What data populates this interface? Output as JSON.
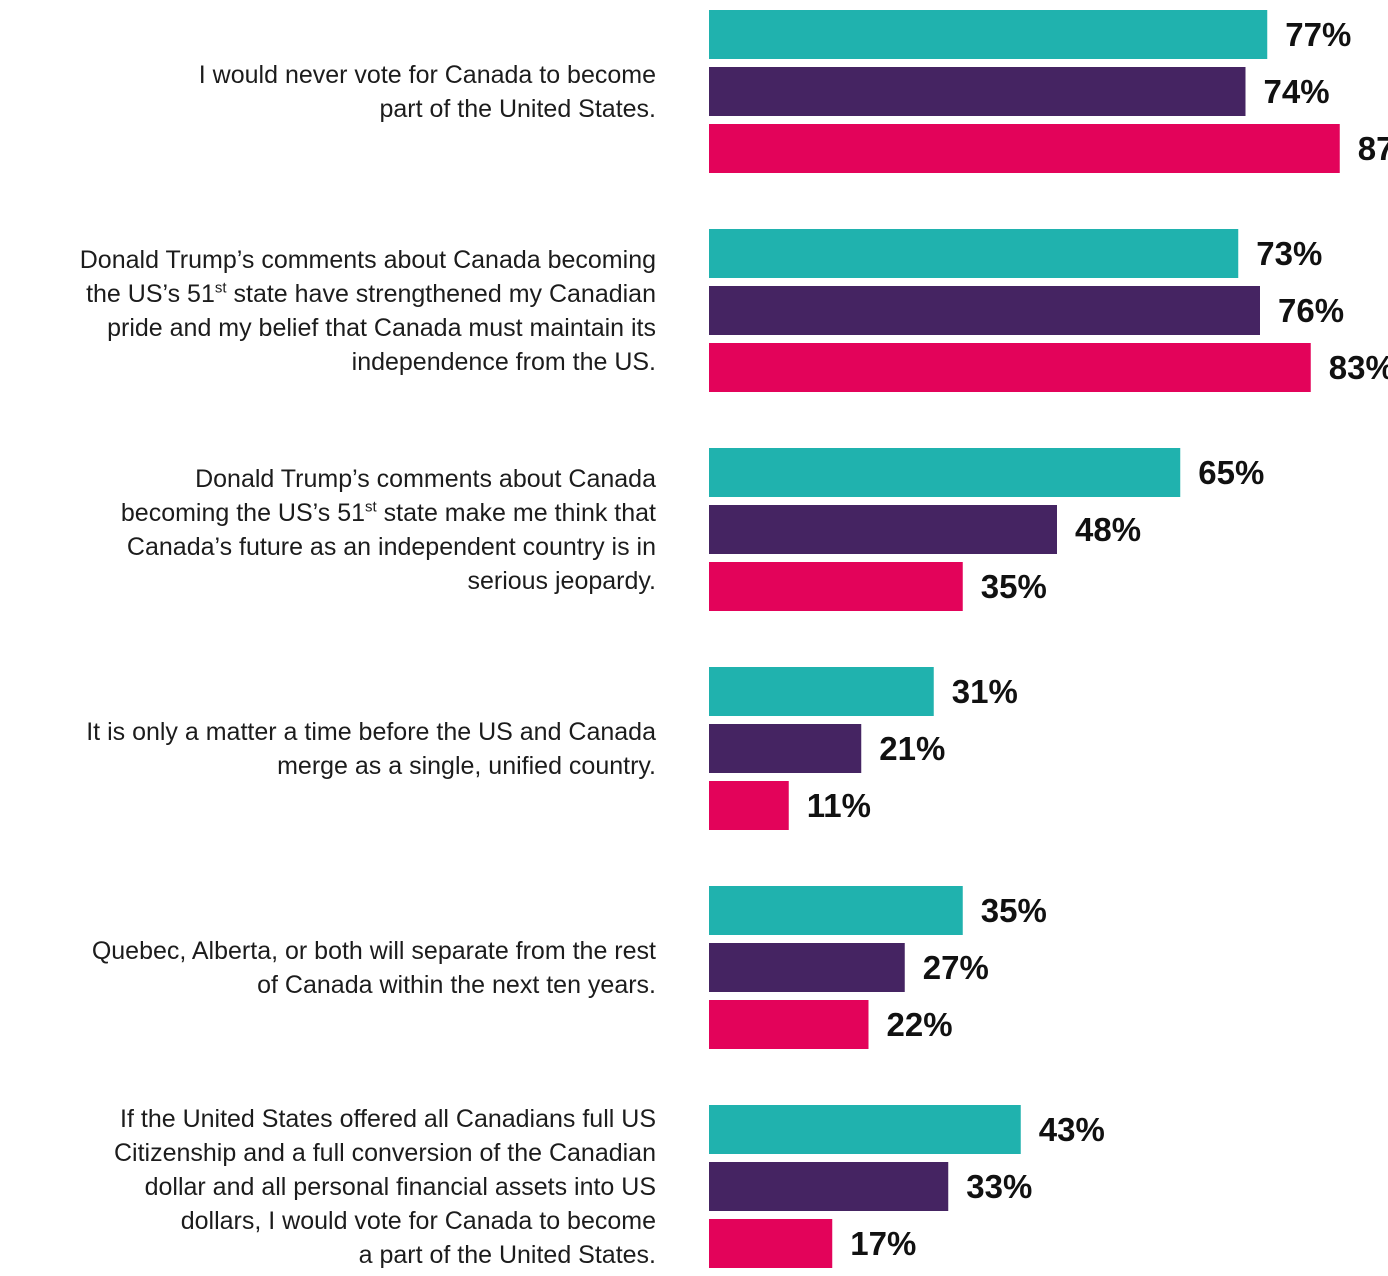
{
  "chart_data": {
    "type": "bar",
    "orientation": "horizontal",
    "title": "",
    "xlabel": "",
    "ylabel": "",
    "grid": false,
    "legend": "none",
    "value_suffix": "%",
    "xlim": [
      0,
      100
    ],
    "categories": [
      "I would never vote for Canada to become part of the United States.",
      "Donald Trump’s comments about Canada becoming the US’s 51st state have strengthened my Canadian pride and my belief that Canada must maintain its independence from the US.",
      "Donald Trump’s comments about Canada becoming the US’s 51st state make me think that Canada’s future as an independent country is in serious jeopardy.",
      "It is only a matter a time before the US and Canada merge as a single, unified country.",
      "Quebec, Alberta, or both will separate from the rest of Canada within the next ten years.",
      "If the United States offered all Canadians full US Citizenship and a full conversion of the Canadian dollar and all personal financial assets into US dollars, I would vote for Canada to become a part of the United States."
    ],
    "category_label_lines": [
      [
        "I would never vote for Canada to become",
        "part of the United States."
      ],
      [
        "Donald Trump’s comments about Canada becoming",
        "the US’s 51|st| state have strengthened my Canadian",
        "pride and my belief that Canada must maintain its",
        "independence from the US."
      ],
      [
        "Donald Trump’s comments about Canada",
        "becoming the US’s 51|st| state make me think that",
        "Canada’s future as an independent country is in",
        "serious jeopardy."
      ],
      [
        "It is only a matter a time before the US and Canada",
        "merge as a single, unified country."
      ],
      [
        "Quebec, Alberta, or both will separate from the rest",
        "of Canada within the next ten years."
      ],
      [
        "If the United States offered all Canadians full US",
        "Citizenship and a full conversion of the Canadian",
        "dollar and all personal financial assets into US",
        "dollars, I would vote for Canada to become",
        "a part of the United States."
      ]
    ],
    "series": [
      {
        "color": "#20b2ae",
        "values": [
          77,
          73,
          65,
          31,
          35,
          43
        ]
      },
      {
        "color": "#452462",
        "values": [
          74,
          76,
          48,
          21,
          27,
          33
        ]
      },
      {
        "color": "#e3035a",
        "values": [
          87,
          83,
          35,
          11,
          22,
          17
        ]
      }
    ]
  }
}
